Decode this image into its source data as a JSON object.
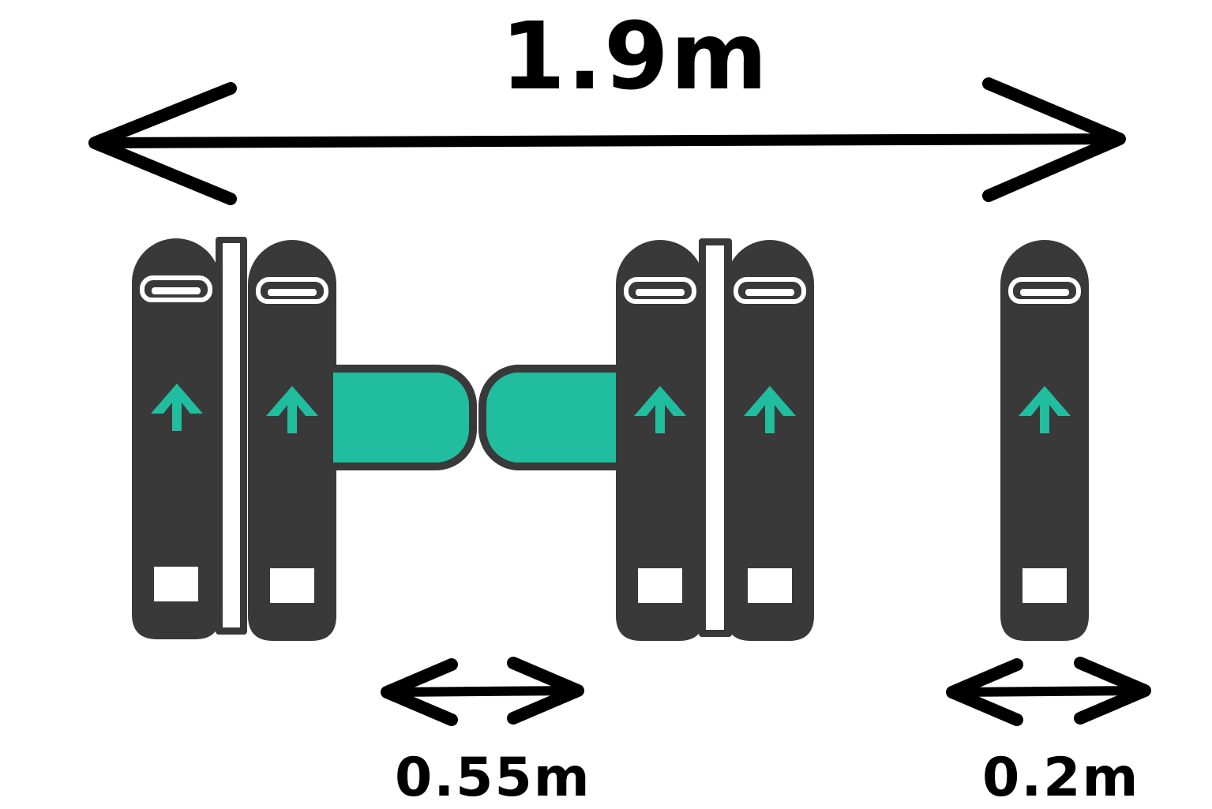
{
  "dimensions": {
    "total_width": "1.9m",
    "passage_width": "0.55m",
    "post_width": "0.2m"
  },
  "colors": {
    "cabinet": "#393939",
    "wing_barrier": "#21bd9f",
    "arrow": "#21bd9f",
    "outline": "#ffffff",
    "dimension_line": "#000000"
  },
  "icons": {
    "direction": "up-arrow-icon",
    "dimension": "double-headed-arrow-icon"
  }
}
